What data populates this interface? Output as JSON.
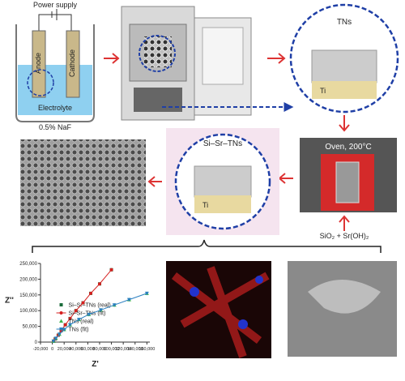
{
  "diagram": {
    "power_supply": "Power supply",
    "anode": "Anode",
    "cathode": "Cathode",
    "electrolyte": "Electrolyte",
    "electrolyte_note": "0.5% NaF",
    "tns": "TNs",
    "ti_top": "Ti",
    "oven": "Oven, 200°C",
    "si_sr_tns": "Si–Sr–TNs",
    "ti_mid": "Ti",
    "reagents": "SiO₂ + Sr(OH)₂"
  },
  "chart_data": {
    "type": "scatter",
    "x_label": "Z'",
    "y_label": "Z''",
    "xlim": [
      -20000,
      165000
    ],
    "ylim": [
      0,
      250000
    ],
    "xticks": [
      {
        "value": -20000,
        "label": "-20,000"
      },
      0,
      {
        "value": 20000,
        "label": "20,000"
      },
      {
        "value": 40000,
        "label": "40,000"
      },
      {
        "value": 60000,
        "label": "60,000"
      },
      {
        "value": 80000,
        "label": "80,000"
      },
      {
        "value": 100000,
        "label": "100,000"
      },
      {
        "value": 120000,
        "label": "120,000"
      },
      {
        "value": 140000,
        "label": "140,000"
      },
      {
        "value": 160000,
        "label": "160,000"
      }
    ],
    "yticks": [
      0,
      {
        "value": 50000,
        "label": "50,000"
      },
      {
        "value": 100000,
        "label": "100,000"
      },
      {
        "value": 150000,
        "label": "150,000"
      },
      {
        "value": 200000,
        "label": "200,000"
      },
      {
        "value": 250000,
        "label": "250,000"
      }
    ],
    "legend": "lower right",
    "series": [
      {
        "name": "Si–Sr–TNs (real)",
        "color": "#1a6b3a",
        "marker": "square",
        "line": false,
        "x": [
          2000,
          5000,
          10000,
          15000,
          22000,
          30000,
          40000,
          52000,
          65000,
          80000,
          100000
        ],
        "values": [
          3000,
          10000,
          22000,
          36000,
          55000,
          75000,
          100000,
          125000,
          155000,
          185000,
          230000
        ]
      },
      {
        "name": "Si–Sr–TNs (fit)",
        "color": "#d62020",
        "marker": "circle",
        "line": true,
        "x": [
          2000,
          5000,
          10000,
          15000,
          22000,
          30000,
          40000,
          52000,
          65000,
          80000,
          100000
        ],
        "values": [
          3000,
          10000,
          22000,
          36000,
          55000,
          75000,
          100000,
          125000,
          155000,
          185000,
          230000
        ]
      },
      {
        "name": "TNs (real)",
        "color": "#3cb44b",
        "marker": "triangle-up",
        "line": false,
        "x": [
          2000,
          6000,
          12000,
          20000,
          30000,
          45000,
          62000,
          82000,
          105000,
          130000,
          160000
        ],
        "values": [
          3000,
          12000,
          25000,
          40000,
          55000,
          72000,
          88000,
          102000,
          118000,
          135000,
          155000
        ]
      },
      {
        "name": "TNs (fit)",
        "color": "#2a7fc0",
        "marker": "triangle-down",
        "line": true,
        "x": [
          2000,
          6000,
          12000,
          20000,
          30000,
          45000,
          62000,
          82000,
          105000,
          130000,
          160000
        ],
        "values": [
          3000,
          12000,
          25000,
          40000,
          55000,
          72000,
          88000,
          102000,
          118000,
          135000,
          155000
        ]
      }
    ]
  }
}
